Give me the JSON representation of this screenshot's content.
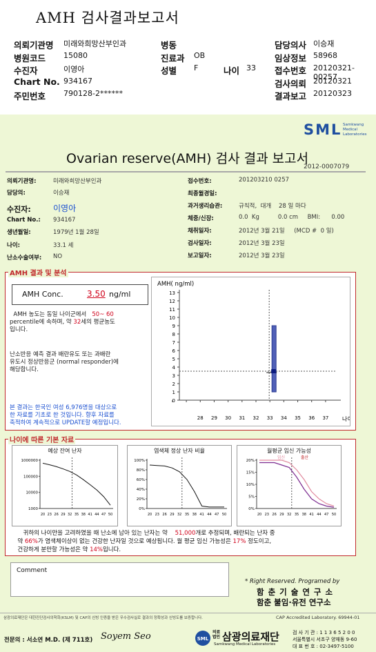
{
  "header": {
    "title": "AMH 검사결과보고서",
    "rows": [
      {
        "l1": "의뢰기관명",
        "v1": "미래와희망산부인과",
        "l2": "병동",
        "v2": "",
        "l4": "담당의사",
        "v4": "이승재"
      },
      {
        "l1": "병원코드",
        "v1": "15080",
        "l2": "진료과",
        "v2": "OB",
        "l4": "임상정보",
        "v4": "58968"
      },
      {
        "l1": "수진자",
        "v1": "이영아",
        "l2": "성별",
        "v2": "F",
        "l3": "나이",
        "v3": "33",
        "l4": "접수번호",
        "v4": "20120321-00257"
      },
      {
        "l1": "Chart No.",
        "v1": "934167",
        "l2": "",
        "v2": "",
        "l4": "검사의뢰",
        "v4": "20120321"
      },
      {
        "l1": "주민번호",
        "v1": "790128-2******",
        "l2": "",
        "v2": "",
        "l4": "결과보고",
        "v4": "20120323"
      }
    ]
  },
  "report": {
    "logo": "SML",
    "logo_sub": [
      "Samkwang",
      "Medical",
      "Laboratories"
    ],
    "title": "Ovarian reserve(AMH) 검사 결과 보고서",
    "doc_no": "2012-0007079",
    "info_left": [
      {
        "label": "의뢰기관명:",
        "value": "미래와희망산부인과"
      },
      {
        "label": "담당의:",
        "value": "이승재"
      },
      {
        "label": "수진자:",
        "value": "이영아"
      },
      {
        "label": "Chart No.:",
        "value": "934167"
      },
      {
        "label": "생년월일:",
        "value": "1979년 1월 28일"
      },
      {
        "label": "나이:",
        "value": "33.1 세"
      },
      {
        "label": "난소수술여부:",
        "value": "NO"
      }
    ],
    "info_right": [
      {
        "label": "접수번호:",
        "value": "201203210 0257"
      },
      {
        "label": "최종월경일:",
        "value": ""
      },
      {
        "label": "과거생리습관:",
        "value": "규칙적,  대개    28 일 마다"
      },
      {
        "label": "체중/신장:",
        "value": "0.0  Kg          0.0 cm     BMI:      0.00"
      },
      {
        "label": "채취일자:",
        "value": "2012년 3월 21일     (MCD #  0 일)"
      },
      {
        "label": "검사일자:",
        "value": "2012년 3월 23일"
      },
      {
        "label": "보고일자:",
        "value": "2012년 3월 23일"
      }
    ],
    "amh_section": {
      "title": "AMH 결과 및 분석",
      "conc_label": "AMH Conc.",
      "conc_value": "3.50",
      "conc_unit": "ng/ml",
      "p1_a": "AMH 농도는 동일 나이군에서",
      "p1_range": "50~ 60",
      "p1_b": "percentile에 속하며, 약",
      "p1_age": "32",
      "p1_c": "세의 평균농도",
      "p1_d": "입니다.",
      "p2": [
        "난소반응 예측 결과 배란유도 또는 과배란",
        "유도시 정상반응군 (normal responder)에",
        "해당합니다."
      ],
      "p3": [
        "본 결과는 한국인 여성 6,976명을 대상으로",
        "한 자료를 기초로 한 것입니다. 향후 자료를",
        "축적하여 계속적으로 UPDATE할 예정입니다."
      ]
    },
    "age_section": {
      "title": "나이에 따른 기본 자료",
      "bottom_a": "귀하의 나이만을 고려하였을 때 난소에 남아 있는 난자는 약",
      "bottom_num": "51,000",
      "bottom_b": "개로 추정되며, 배란되는 난자 중",
      "bottom_c": "약",
      "bottom_pct1": "66%",
      "bottom_d": "가 염색체이상이 없는 건강한 난자일 것으로 예상됩니다. 월 평균 임신 가능성은",
      "bottom_pct2": "17%",
      "bottom_e": "정도이고,",
      "bottom_f": "건강하게 분만할 가능성은 약",
      "bottom_pct3": "14%",
      "bottom_g": "입니다."
    },
    "comment_label": "Comment",
    "rights": "* Right Reserved. Programed by",
    "inst1": "함 춘 기 술 연 구 소",
    "inst2": "함춘 불임·유전 연구소",
    "footer_note": "삼광의료재단은 대한진단검사의학회(KSLM) 및 CAP의 신빙 인증을 받은 우수검사실로 결과의 정확성과 신빙도를 보증합니다.",
    "cap": "CAP  Accredited  Laboratory.   69944-01",
    "specialist": "전문의 : 서소연 M.D. (제 711호)",
    "signature": "Soyem Seo",
    "foundation_small": "의료법인",
    "foundation": "삼광의료재단",
    "foundation_en": "Samkwang Medical Laboratories",
    "contact": [
      "검 사 기 관 : 1 1 3 6 5 2 0 0",
      "서울특별시 서초구 양재동 9-60",
      "대 표 번 호 : 02-3497-5100"
    ]
  },
  "chart_data": [
    {
      "type": "bar",
      "title": "",
      "ylabel": "AMH( ng/ml)",
      "xlabel": "나이",
      "x_ticks": [
        26,
        27,
        28,
        29,
        30,
        31,
        32,
        33,
        34,
        35,
        36,
        37
      ],
      "x_tick_labels": [
        "",
        "",
        "28",
        "29",
        "30",
        "31",
        "32",
        "33",
        "34",
        "35",
        "36",
        "37"
      ],
      "y_ticks": [
        0,
        1,
        2,
        3,
        4,
        5,
        6,
        7,
        8,
        9,
        10,
        11,
        12,
        13
      ],
      "ylim": [
        0,
        13
      ],
      "xlim": [
        26.5,
        37.5
      ],
      "range_bar": {
        "x": 33,
        "low": 1.0,
        "high": 9.0
      },
      "point": {
        "x": 33,
        "y": 3.5
      },
      "ref_line_x": 33,
      "ref_line_y": 3.5,
      "grid": false
    },
    {
      "type": "line",
      "title": "예상 잔여 난자",
      "x": [
        20,
        23,
        26,
        29,
        32,
        35,
        38,
        41,
        44,
        47,
        50
      ],
      "y": [
        650000,
        520000,
        400000,
        290000,
        200000,
        120000,
        62000,
        30000,
        14000,
        5500,
        1600
      ],
      "y_scale": "log",
      "ylim": [
        1000,
        1000000
      ],
      "y_tick_labels": [
        "1000000",
        "100000",
        "10000",
        "1000"
      ],
      "x_tick_labels": [
        "20",
        "23",
        "26",
        "29",
        "32",
        "35",
        "38",
        "41",
        "44",
        "47",
        "50"
      ],
      "ref_x": 33
    },
    {
      "type": "line",
      "title": "염색체 정상 난자 비율",
      "x": [
        20,
        23,
        26,
        29,
        32,
        35,
        38,
        41,
        44,
        47,
        50
      ],
      "y": [
        90,
        89,
        88,
        84,
        76,
        60,
        35,
        5,
        3,
        3,
        3
      ],
      "ylim": [
        0,
        100
      ],
      "y_tick_labels": [
        "100%",
        "80%",
        "60%",
        "40%",
        "20%",
        "0%"
      ],
      "x_tick_labels": [
        "20",
        "23",
        "26",
        "29",
        "32",
        "35",
        "38",
        "41",
        "44",
        "47",
        "50"
      ],
      "ref_x": 33
    },
    {
      "type": "line",
      "title": "월평균 임신 가능성",
      "legend": [
        "임신",
        "출산"
      ],
      "x_tick_labels": [
        "20",
        "23",
        "26",
        "29",
        "32",
        "35",
        "38",
        "41",
        "44",
        "47",
        "50"
      ],
      "y_tick_labels": [
        "20%",
        "15%",
        "10%",
        "5%",
        "0%"
      ],
      "ylim": [
        0,
        22
      ],
      "series": [
        {
          "name": "임신",
          "color": "#e08a9e",
          "x": [
            20,
            23,
            26,
            29,
            32,
            35,
            38,
            41,
            44,
            47,
            50
          ],
          "y": [
            20,
            20,
            20,
            20,
            19,
            16,
            12,
            7,
            4,
            2,
            1
          ]
        },
        {
          "name": "출산",
          "color": "#7b2a8f",
          "x": [
            20,
            23,
            26,
            29,
            32,
            35,
            38,
            41,
            44,
            47,
            50
          ],
          "y": [
            19,
            19,
            19,
            18,
            17,
            13,
            8,
            4,
            2,
            1,
            0.5
          ]
        }
      ],
      "ref_x": 33
    }
  ]
}
